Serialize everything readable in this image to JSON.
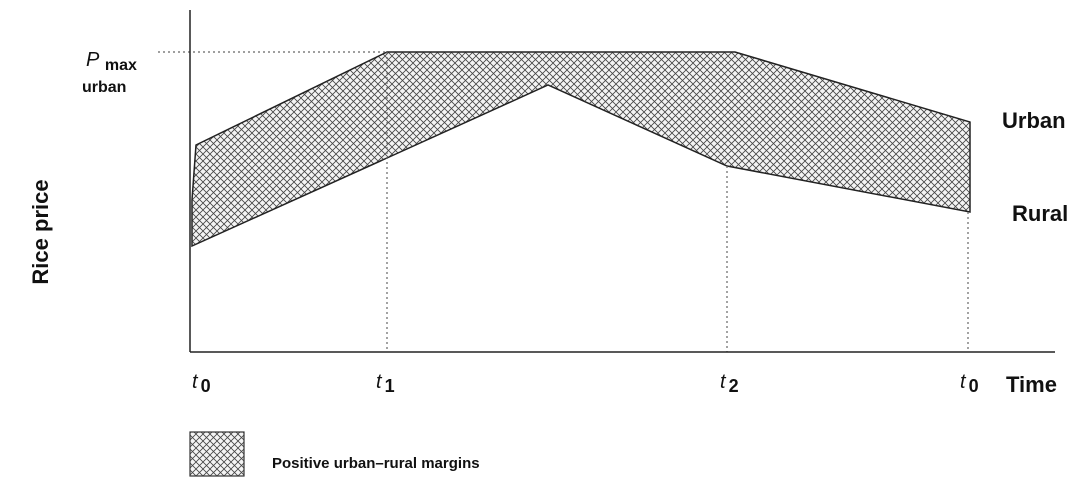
{
  "y_axis_label": "Rice price",
  "x_axis_label": "Time",
  "pmax_label": {
    "symbol": "P",
    "subscript": "max",
    "line2": "urban"
  },
  "series_labels": [
    "Urban",
    "Rural"
  ],
  "time_marks": [
    {
      "symbol": "t",
      "subscript": "0"
    },
    {
      "symbol": "t",
      "subscript": "1"
    },
    {
      "symbol": "t",
      "subscript": "2"
    },
    {
      "symbol": "t",
      "subscript": "0"
    }
  ],
  "legend": {
    "label": "Positive urban–rural margins"
  }
}
